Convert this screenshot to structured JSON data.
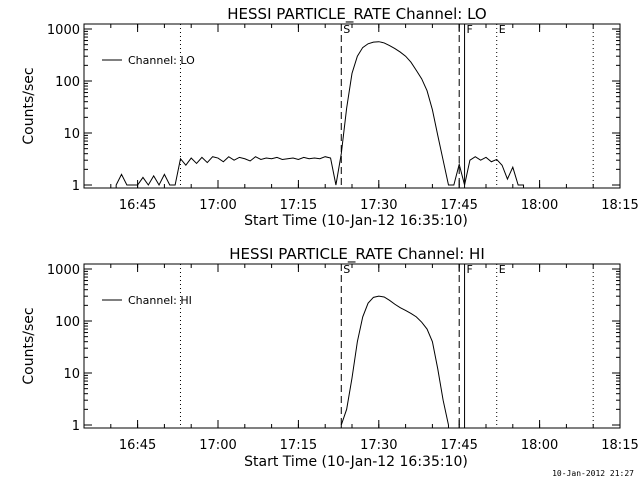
{
  "timestamp": "10-Jan-2012 21:27",
  "chart_data": [
    {
      "type": "line",
      "title": "HESSI PARTICLE_RATE Channel: LO",
      "xlabel": "Start Time (10-Jan-12 16:35:10)",
      "ylabel": "Counts/sec",
      "y_scale": "log",
      "ylim": [
        1,
        1000
      ],
      "xlim": [
        "16:35",
        "18:15"
      ],
      "x_ticks": [
        "16:45",
        "17:00",
        "17:15",
        "17:30",
        "17:45",
        "18:00",
        "18:15"
      ],
      "y_ticks": [
        "1",
        "10",
        "100",
        "1000"
      ],
      "grid": false,
      "legend": {
        "position": "top-left",
        "entries": [
          "Channel: LO"
        ]
      },
      "markers": [
        {
          "label": "",
          "time": "16:53",
          "style": "dotted"
        },
        {
          "label": "S",
          "time": "17:23",
          "style": "dashed"
        },
        {
          "label": "",
          "time": "17:45",
          "style": "dashed"
        },
        {
          "label": "F",
          "time": "17:46",
          "style": "solid"
        },
        {
          "label": "E",
          "time": "17:52",
          "style": "dotted"
        },
        {
          "label": "",
          "time": "18:10",
          "style": "dotted"
        }
      ],
      "series": [
        {
          "name": "Channel: LO",
          "x": [
            "16:41",
            "16:42",
            "16:43",
            "16:44",
            "16:45",
            "16:46",
            "16:47",
            "16:48",
            "16:49",
            "16:50",
            "16:51",
            "16:52",
            "16:53",
            "16:54",
            "16:55",
            "16:56",
            "16:57",
            "16:58",
            "16:59",
            "17:00",
            "17:01",
            "17:02",
            "17:03",
            "17:04",
            "17:05",
            "17:06",
            "17:07",
            "17:08",
            "17:09",
            "17:10",
            "17:11",
            "17:12",
            "17:13",
            "17:14",
            "17:15",
            "17:16",
            "17:17",
            "17:18",
            "17:19",
            "17:20",
            "17:21",
            "17:22",
            "17:23",
            "17:24",
            "17:25",
            "17:26",
            "17:27",
            "17:28",
            "17:29",
            "17:30",
            "17:31",
            "17:32",
            "17:33",
            "17:34",
            "17:35",
            "17:36",
            "17:37",
            "17:38",
            "17:39",
            "17:40",
            "17:41",
            "17:42",
            "17:43",
            "17:44",
            "17:45",
            "17:46",
            "17:47",
            "17:48",
            "17:49",
            "17:50",
            "17:51",
            "17:52",
            "17:53",
            "17:54",
            "17:55",
            "17:56",
            "17:57"
          ],
          "values": [
            1,
            1.6,
            1,
            1,
            1,
            1.4,
            1,
            1.5,
            1,
            1.6,
            1,
            1,
            3.2,
            2.4,
            3.3,
            2.6,
            3.4,
            2.7,
            3.5,
            3.3,
            2.8,
            3.5,
            3,
            3.4,
            3.2,
            2.9,
            3.5,
            3.1,
            3.3,
            3.2,
            3.4,
            3.1,
            3.2,
            3.3,
            3.1,
            3.4,
            3.2,
            3.3,
            3.2,
            3.5,
            3.3,
            1,
            4,
            30,
            140,
            300,
            440,
            520,
            560,
            570,
            540,
            480,
            420,
            360,
            300,
            230,
            160,
            110,
            65,
            28,
            9,
            3,
            1,
            1,
            2.5,
            1,
            3,
            3.5,
            3,
            3.4,
            2.8,
            3.1,
            2.4,
            1.3,
            2.2,
            1,
            1
          ]
        }
      ]
    },
    {
      "type": "line",
      "title": "HESSI PARTICLE_RATE Channel: HI",
      "xlabel": "Start Time (10-Jan-12 16:35:10)",
      "ylabel": "Counts/sec",
      "y_scale": "log",
      "ylim": [
        1,
        1000
      ],
      "xlim": [
        "16:35",
        "18:15"
      ],
      "x_ticks": [
        "16:45",
        "17:00",
        "17:15",
        "17:30",
        "17:45",
        "18:00",
        "18:15"
      ],
      "y_ticks": [
        "1",
        "10",
        "100",
        "1000"
      ],
      "grid": false,
      "legend": {
        "position": "top-left",
        "entries": [
          "Channel: HI"
        ]
      },
      "markers": [
        {
          "label": "",
          "time": "16:53",
          "style": "dotted"
        },
        {
          "label": "S",
          "time": "17:23",
          "style": "dashed"
        },
        {
          "label": "",
          "time": "17:45",
          "style": "dashed"
        },
        {
          "label": "F",
          "time": "17:46",
          "style": "solid"
        },
        {
          "label": "E",
          "time": "17:52",
          "style": "dotted"
        },
        {
          "label": "",
          "time": "18:10",
          "style": "dotted"
        }
      ],
      "series": [
        {
          "name": "Channel: HI",
          "x": [
            "17:23",
            "17:24",
            "17:25",
            "17:26",
            "17:27",
            "17:28",
            "17:29",
            "17:30",
            "17:31",
            "17:32",
            "17:33",
            "17:34",
            "17:35",
            "17:36",
            "17:37",
            "17:38",
            "17:39",
            "17:40",
            "17:41",
            "17:42",
            "17:43"
          ],
          "values": [
            1,
            2,
            8,
            40,
            120,
            220,
            285,
            300,
            290,
            250,
            210,
            180,
            160,
            140,
            120,
            95,
            70,
            40,
            12,
            3,
            1
          ]
        }
      ]
    }
  ]
}
